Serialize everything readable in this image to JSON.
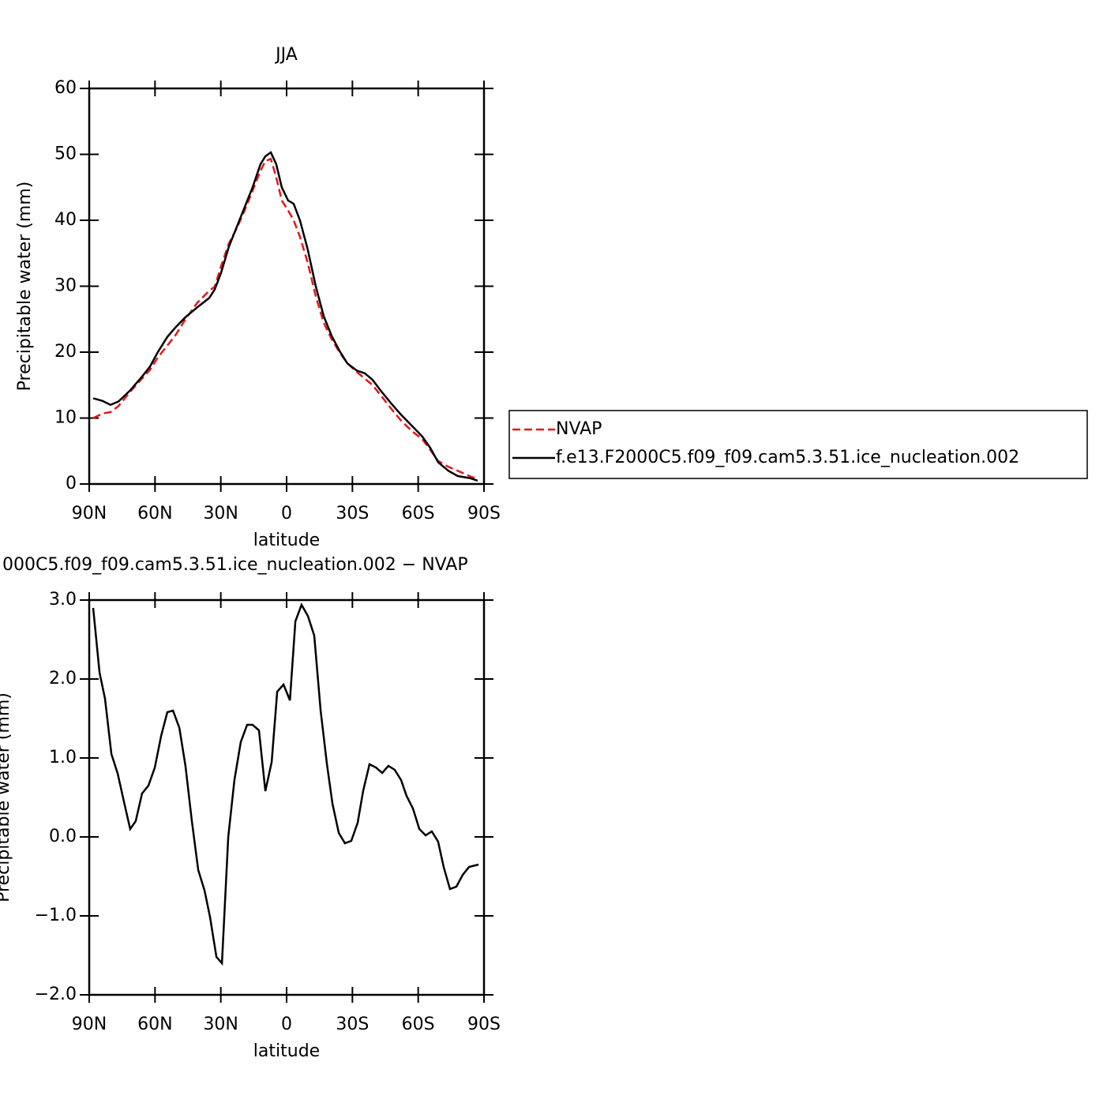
{
  "chart_data": [
    {
      "type": "line",
      "title": "JJA",
      "xlabel": "latitude",
      "ylabel": "Precipitable water (mm)",
      "xlim": [
        90,
        -90
      ],
      "ylim": [
        0,
        60
      ],
      "xticks": [
        {
          "value": 90,
          "label": "90N"
        },
        {
          "value": 60,
          "label": "60N"
        },
        {
          "value": 30,
          "label": "30N"
        },
        0,
        {
          "value": -30,
          "label": "30S"
        },
        {
          "value": -60,
          "label": "60S"
        },
        {
          "value": -90,
          "label": "90S"
        }
      ],
      "yticks": [
        0,
        10,
        20,
        30,
        40,
        50,
        60
      ],
      "legend": "right",
      "x": [
        88.2,
        83.9,
        80.3,
        76.7,
        71.3,
        65.9,
        62.3,
        58.7,
        54.4,
        50.8,
        46.1,
        40.7,
        35.3,
        32.8,
        29.9,
        26.3,
        22.7,
        19.1,
        15.5,
        11.9,
        9.7,
        7.2,
        4.7,
        2.2,
        -0.7,
        -3.2,
        -6.1,
        -9.7,
        -13.3,
        -16.9,
        -20.5,
        -24.1,
        -27.7,
        -32.0,
        -35.6,
        -39.2,
        -42.8,
        -47.5,
        -52.2,
        -57.2,
        -61.9,
        -65.5,
        -69.1,
        -73.8,
        -78.1,
        -83.5,
        -87.1
      ],
      "series": [
        {
          "name": "NVAP",
          "color": "#e8161b",
          "dashed": true,
          "values": [
            10.0,
            10.7,
            10.9,
            11.8,
            14.0,
            16.0,
            17.3,
            19.2,
            21.0,
            22.5,
            25.0,
            27.5,
            29.3,
            29.9,
            33.0,
            36.5,
            38.8,
            41.5,
            44.5,
            47.5,
            49.0,
            49.3,
            46.5,
            43.0,
            41.5,
            40.0,
            37.5,
            33.5,
            28.5,
            24.5,
            22.0,
            20.0,
            18.3,
            17.0,
            16.0,
            15.0,
            13.5,
            11.5,
            9.6,
            8.0,
            6.8,
            5.2,
            3.5,
            2.6,
            2.0,
            1.2,
            0.7
          ]
        },
        {
          "name": "f.e13.F2000C5.f09_f09.cam5.3.51.ice_nucleation.002",
          "color": "#000000",
          "dashed": false,
          "values": [
            13.0,
            12.6,
            12.0,
            12.5,
            14.2,
            16.3,
            17.8,
            20.0,
            22.3,
            23.7,
            25.3,
            26.8,
            28.2,
            29.5,
            32.0,
            36.0,
            39.0,
            42.0,
            45.0,
            48.5,
            49.7,
            50.3,
            48.5,
            45.0,
            43.0,
            42.5,
            40.0,
            35.5,
            30.0,
            25.5,
            22.5,
            20.2,
            18.3,
            17.2,
            16.8,
            15.8,
            14.2,
            12.3,
            10.5,
            8.8,
            7.2,
            5.5,
            3.3,
            2.0,
            1.2,
            0.9,
            0.5
          ]
        }
      ]
    },
    {
      "type": "line",
      "title": "000C5.f09_f09.cam5.3.51.ice_nucleation.002 − NVAP",
      "xlabel": "latitude",
      "ylabel": "Precipitable water (mm)",
      "xlim": [
        90,
        -90
      ],
      "ylim": [
        -2,
        3
      ],
      "xticks": [
        {
          "value": 90,
          "label": "90N"
        },
        {
          "value": 60,
          "label": "60N"
        },
        {
          "value": 30,
          "label": "30N"
        },
        0,
        {
          "value": -30,
          "label": "30S"
        },
        {
          "value": -60,
          "label": "60S"
        },
        {
          "value": -90,
          "label": "90S"
        }
      ],
      "yticks": [
        {
          "value": -2,
          "label": "−2.0"
        },
        {
          "value": -1,
          "label": "−1.0"
        },
        {
          "value": 0,
          "label": "0.0"
        },
        {
          "value": 1,
          "label": "1.0"
        },
        {
          "value": 2,
          "label": "2.0"
        },
        {
          "value": 3,
          "label": "3.0"
        }
      ],
      "x": [
        88.2,
        85.3,
        82.8,
        79.9,
        77.0,
        74.2,
        71.3,
        68.8,
        65.9,
        63.0,
        60.1,
        57.2,
        54.4,
        51.8,
        48.9,
        46.1,
        43.2,
        40.3,
        37.4,
        34.9,
        32.0,
        29.5,
        26.6,
        23.8,
        20.9,
        18.0,
        15.5,
        12.6,
        9.7,
        6.8,
        4.3,
        1.4,
        -1.5,
        -4.0,
        -6.8,
        -9.7,
        -12.6,
        -15.5,
        -18.4,
        -20.9,
        -23.8,
        -26.6,
        -29.5,
        -32.4,
        -34.9,
        -37.8,
        -40.7,
        -43.6,
        -46.4,
        -49.3,
        -52.2,
        -54.7,
        -57.6,
        -60.5,
        -63.4,
        -66.2,
        -69.1,
        -71.6,
        -74.5,
        -77.4,
        -80.3,
        -83.2,
        -87.5
      ],
      "series": [
        {
          "color": "#000000",
          "dashed": false,
          "values": [
            2.9,
            2.08,
            1.75,
            1.05,
            0.8,
            0.45,
            0.1,
            0.2,
            0.55,
            0.65,
            0.88,
            1.28,
            1.58,
            1.6,
            1.38,
            0.9,
            0.2,
            -0.42,
            -0.68,
            -1.02,
            -1.52,
            -1.6,
            0.0,
            0.72,
            1.2,
            1.42,
            1.42,
            1.35,
            0.58,
            0.95,
            1.84,
            1.93,
            1.73,
            2.73,
            2.94,
            2.8,
            2.55,
            1.6,
            0.92,
            0.42,
            0.05,
            -0.08,
            -0.05,
            0.18,
            0.58,
            0.92,
            0.88,
            0.81,
            0.9,
            0.85,
            0.72,
            0.52,
            0.36,
            0.1,
            0.02,
            0.07,
            -0.06,
            -0.38,
            -0.66,
            -0.63,
            -0.48,
            -0.38,
            -0.35
          ]
        }
      ]
    }
  ]
}
